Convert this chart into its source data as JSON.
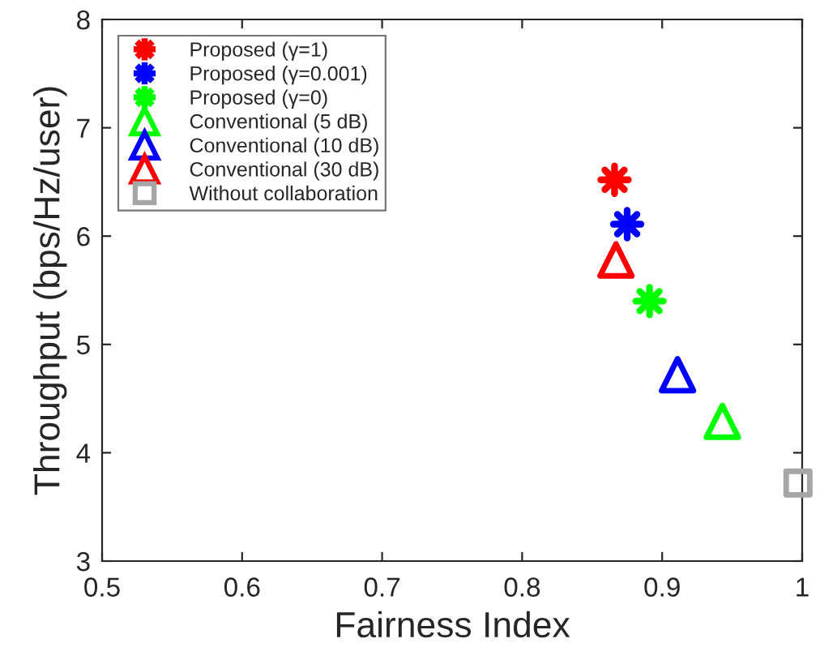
{
  "chart_data": {
    "type": "scatter",
    "xlabel": "Fairness Index",
    "ylabel": "Throughput (bps/Hz/user)",
    "xlim": [
      0.5,
      1
    ],
    "xticks": [
      0.5,
      0.6,
      0.7,
      0.8,
      0.9,
      1
    ],
    "ylim": [
      3,
      8
    ],
    "yticks": [
      3,
      4,
      5,
      6,
      7,
      8
    ],
    "grid": false,
    "legend": "top left",
    "series": [
      {
        "name": "Proposed (γ=1)",
        "color": "#ff0000",
        "marker": "star",
        "x": [
          0.866
        ],
        "values": [
          6.52
        ]
      },
      {
        "name": "Proposed (γ=0.001)",
        "color": "#0000ff",
        "marker": "star",
        "x": [
          0.875
        ],
        "values": [
          6.11
        ]
      },
      {
        "name": "Proposed (γ=0)",
        "color": "#00ff00",
        "marker": "star",
        "x": [
          0.891
        ],
        "values": [
          5.4
        ]
      },
      {
        "name": "Conventional (5 dB)",
        "color": "#00ff00",
        "marker": "triangle",
        "x": [
          0.943
        ],
        "values": [
          4.29
        ]
      },
      {
        "name": "Conventional (10 dB)",
        "color": "#0000ff",
        "marker": "triangle",
        "x": [
          0.911
        ],
        "values": [
          4.72
        ]
      },
      {
        "name": "Conventional (30 dB)",
        "color": "#ff0000",
        "marker": "triangle",
        "x": [
          0.867
        ],
        "values": [
          5.78
        ]
      },
      {
        "name": "Without collaboration",
        "color": "#a6a6a6",
        "marker": "square",
        "x": [
          0.997
        ],
        "values": [
          3.72
        ]
      }
    ]
  }
}
